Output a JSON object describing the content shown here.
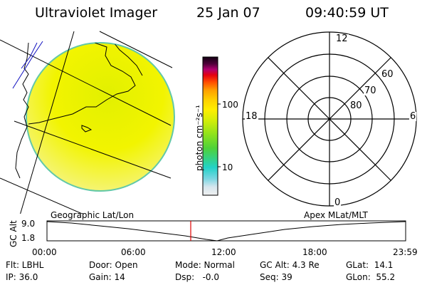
{
  "header": {
    "instrument": "Ultraviolet Imager",
    "date": "25 Jan 07",
    "time": "09:40:59 UT"
  },
  "colorbar": {
    "unit_label": "photon cm⁻²s⁻¹",
    "ticks": [
      "100",
      "10"
    ]
  },
  "polar_plot": {
    "mlt_labels": {
      "top": "12",
      "left": "18",
      "right": "6",
      "bottom": "0"
    },
    "mlat_labels": [
      "60",
      "70",
      "80"
    ]
  },
  "timeline": {
    "left_label": "Geographic Lat/Lon",
    "right_label": "Apex MLat/MLT",
    "y_axis_label": "GC Alt",
    "y_ticks": [
      "9.0",
      "1.8"
    ],
    "x_ticks": [
      "00:00",
      "06:00",
      "12:00",
      "18:00",
      "23:59"
    ],
    "marker_color": "#e00000"
  },
  "footer": {
    "row1": {
      "flt": "Flt: LBHL",
      "door": "Door: Open",
      "mode": "Mode: Normal",
      "gc_alt": "GC Alt: 4.3 Re",
      "glat": "GLat:  14.1"
    },
    "row2": {
      "ip": "IP: 36.0",
      "gain": "Gain: 14",
      "dsp": "Dsp:   -0.0",
      "seq": "Seq: 39",
      "glon": "GLon:  55.2"
    }
  }
}
